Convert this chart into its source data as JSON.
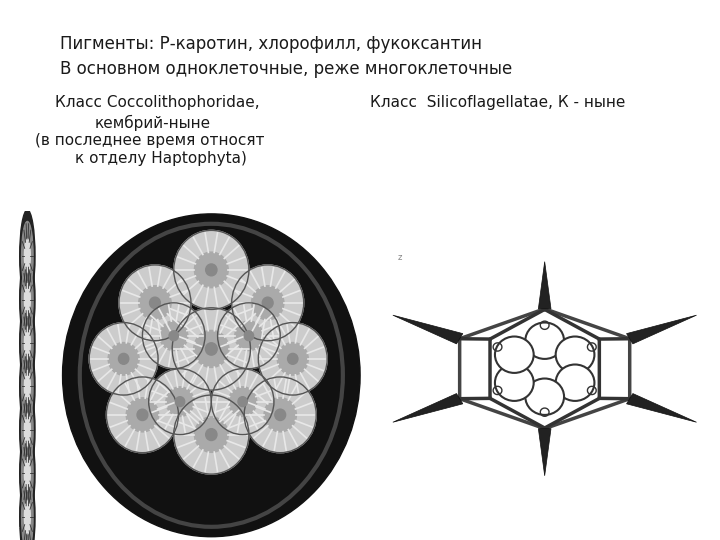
{
  "background_color": "#ffffff",
  "text_line1": "Пигменты: Р-каротин, хлорофилл, фукоксантин",
  "text_line2": "В основном одноклеточные, реже многоклеточные",
  "text_left1": "Класс Coccolithophoridae,",
  "text_left2": "кембрий-ныне",
  "text_left3": "(в последнее время относят",
  "text_left4": "к отделу Haptophyta)",
  "text_right1": "Класс  Silicoflagellatae, К - ныне",
  "font_size_header": 12,
  "font_size_body": 11,
  "text_color": "#1a1a1a"
}
